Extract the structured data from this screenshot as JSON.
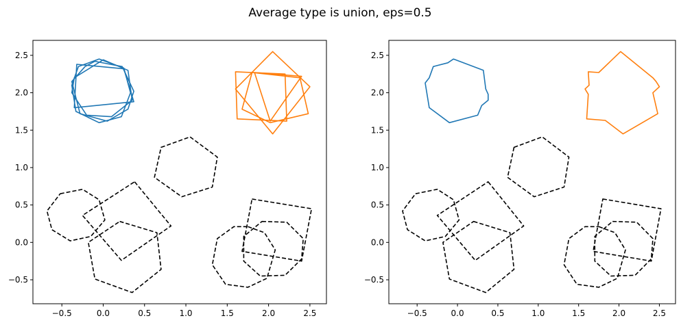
{
  "figure": {
    "title": "Average type is union, eps=0.5"
  },
  "chart_data": [
    {
      "type": "line",
      "panel": "left",
      "xlim": [
        -0.85,
        2.7
      ],
      "ylim": [
        -0.82,
        2.7
      ],
      "xticks": [
        -0.5,
        0.0,
        0.5,
        1.0,
        1.5,
        2.0,
        2.5
      ],
      "yticks": [
        -0.5,
        0.0,
        0.5,
        1.0,
        1.5,
        2.0,
        2.5
      ],
      "xtick_labels": [
        "−0.5",
        "0.0",
        "0.5",
        "1.0",
        "1.5",
        "2.0",
        "2.5"
      ],
      "ytick_labels": [
        "−0.5",
        "0.0",
        "0.5",
        "1.0",
        "1.5",
        "2.0",
        "2.5"
      ],
      "grid": false,
      "series": [
        {
          "color": "#1f77b4",
          "style": "solid",
          "points": [
            [
              -0.05,
              2.45
            ],
            [
              0.25,
              2.33
            ],
            [
              0.33,
              2.0
            ],
            [
              0.22,
              1.68
            ],
            [
              -0.05,
              1.6
            ],
            [
              -0.33,
              1.75
            ],
            [
              -0.38,
              2.1
            ],
            [
              -0.3,
              2.35
            ]
          ]
        },
        {
          "color": "#1f77b4",
          "style": "solid",
          "points": [
            [
              -0.1,
              2.42
            ],
            [
              0.23,
              2.35
            ],
            [
              0.37,
              2.02
            ],
            [
              0.3,
              1.78
            ],
            [
              0.05,
              1.62
            ],
            [
              -0.28,
              1.72
            ],
            [
              -0.38,
              2.15
            ],
            [
              -0.22,
              2.35
            ]
          ]
        },
        {
          "color": "#1f77b4",
          "style": "solid",
          "points": [
            [
              0.0,
              2.44
            ],
            [
              0.3,
              2.3
            ],
            [
              0.35,
              1.9
            ],
            [
              0.1,
              1.68
            ],
            [
              -0.2,
              1.7
            ],
            [
              -0.38,
              2.0
            ],
            [
              -0.35,
              2.2
            ]
          ]
        },
        {
          "color": "#1f77b4",
          "style": "solid",
          "points": [
            [
              -0.32,
              2.38
            ],
            [
              0.25,
              2.32
            ],
            [
              0.37,
              1.88
            ],
            [
              -0.35,
              1.8
            ]
          ]
        },
        {
          "color": "#ff7f0e",
          "style": "solid",
          "points": [
            [
              1.6,
              2.28
            ],
            [
              2.2,
              2.25
            ],
            [
              2.22,
              1.62
            ],
            [
              1.62,
              1.65
            ]
          ]
        },
        {
          "color": "#ff7f0e",
          "style": "solid",
          "points": [
            [
              2.05,
              2.55
            ],
            [
              2.5,
              2.08
            ],
            [
              2.05,
              1.45
            ],
            [
              1.6,
              2.05
            ]
          ]
        },
        {
          "color": "#ff7f0e",
          "style": "solid",
          "points": [
            [
              1.8,
              2.27
            ],
            [
              2.38,
              2.2
            ],
            [
              2.48,
              1.72
            ],
            [
              2.02,
              1.6
            ],
            [
              1.68,
              1.78
            ]
          ]
        },
        {
          "color": "#ff7f0e",
          "style": "solid",
          "points": [
            [
              1.83,
              2.27
            ],
            [
              2.4,
              2.22
            ],
            [
              2.02,
              1.62
            ]
          ]
        },
        {
          "color": "#000000",
          "style": "dashed",
          "points": [
            [
              0.7,
              1.27
            ],
            [
              1.05,
              1.41
            ],
            [
              1.38,
              1.14
            ],
            [
              1.32,
              0.74
            ],
            [
              0.95,
              0.61
            ],
            [
              0.62,
              0.87
            ]
          ]
        },
        {
          "color": "#000000",
          "style": "dashed",
          "points": [
            [
              -0.52,
              0.65
            ],
            [
              -0.25,
              0.71
            ],
            [
              -0.05,
              0.57
            ],
            [
              0.02,
              0.3
            ],
            [
              -0.15,
              0.08
            ],
            [
              -0.4,
              0.02
            ],
            [
              -0.62,
              0.17
            ],
            [
              -0.68,
              0.42
            ]
          ]
        },
        {
          "color": "#000000",
          "style": "dashed",
          "points": [
            [
              0.38,
              0.81
            ],
            [
              0.82,
              0.22
            ],
            [
              0.22,
              -0.24
            ],
            [
              -0.25,
              0.36
            ]
          ]
        },
        {
          "color": "#000000",
          "style": "dashed",
          "points": [
            [
              0.2,
              0.28
            ],
            [
              0.65,
              0.13
            ],
            [
              0.7,
              -0.36
            ],
            [
              0.35,
              -0.67
            ],
            [
              -0.1,
              -0.49
            ],
            [
              -0.18,
              0.0
            ]
          ]
        },
        {
          "color": "#000000",
          "style": "dashed",
          "points": [
            [
              1.8,
              0.58
            ],
            [
              2.52,
              0.45
            ],
            [
              2.4,
              -0.25
            ],
            [
              1.68,
              -0.12
            ]
          ]
        },
        {
          "color": "#000000",
          "style": "dashed",
          "points": [
            [
              1.75,
              0.21
            ],
            [
              1.95,
              0.13
            ],
            [
              2.08,
              -0.1
            ],
            [
              1.98,
              -0.48
            ],
            [
              1.75,
              -0.6
            ],
            [
              1.48,
              -0.56
            ],
            [
              1.32,
              -0.3
            ],
            [
              1.38,
              0.05
            ],
            [
              1.58,
              0.21
            ]
          ]
        },
        {
          "color": "#000000",
          "style": "dashed",
          "points": [
            [
              1.92,
              0.28
            ],
            [
              2.22,
              0.27
            ],
            [
              2.42,
              0.05
            ],
            [
              2.4,
              -0.22
            ],
            [
              2.2,
              -0.44
            ],
            [
              1.9,
              -0.45
            ],
            [
              1.7,
              -0.25
            ],
            [
              1.7,
              0.08
            ]
          ]
        }
      ]
    },
    {
      "type": "line",
      "panel": "right",
      "xlim": [
        -0.85,
        2.7
      ],
      "ylim": [
        -0.82,
        2.7
      ],
      "xticks": [
        -0.5,
        0.0,
        0.5,
        1.0,
        1.5,
        2.0,
        2.5
      ],
      "yticks": [
        -0.5,
        0.0,
        0.5,
        1.0,
        1.5,
        2.0,
        2.5
      ],
      "xtick_labels": [
        "−0.5",
        "0.0",
        "0.5",
        "1.0",
        "1.5",
        "2.0",
        "2.5"
      ],
      "ytick_labels": [
        "−0.5",
        "0.0",
        "0.5",
        "1.0",
        "1.5",
        "2.0",
        "2.5"
      ],
      "grid": false,
      "series": [
        {
          "color": "#1f77b4",
          "style": "solid",
          "points": [
            [
              -0.05,
              2.45
            ],
            [
              0.32,
              2.3
            ],
            [
              0.35,
              2.05
            ],
            [
              0.38,
              1.98
            ],
            [
              0.38,
              1.9
            ],
            [
              0.3,
              1.83
            ],
            [
              0.25,
              1.7
            ],
            [
              -0.1,
              1.6
            ],
            [
              -0.35,
              1.8
            ],
            [
              -0.4,
              2.13
            ],
            [
              -0.35,
              2.2
            ],
            [
              -0.3,
              2.35
            ],
            [
              -0.12,
              2.4
            ]
          ]
        },
        {
          "color": "#ff7f0e",
          "style": "solid",
          "points": [
            [
              2.02,
              2.55
            ],
            [
              2.42,
              2.2
            ],
            [
              2.46,
              2.15
            ],
            [
              2.5,
              2.08
            ],
            [
              2.42,
              2.0
            ],
            [
              2.48,
              1.72
            ],
            [
              2.05,
              1.45
            ],
            [
              1.83,
              1.63
            ],
            [
              1.6,
              1.65
            ],
            [
              1.62,
              1.98
            ],
            [
              1.58,
              2.05
            ],
            [
              1.63,
              2.1
            ],
            [
              1.62,
              2.28
            ],
            [
              1.75,
              2.27
            ]
          ]
        },
        {
          "color": "#000000",
          "style": "dashed",
          "points": [
            [
              0.7,
              1.27
            ],
            [
              1.05,
              1.41
            ],
            [
              1.38,
              1.14
            ],
            [
              1.32,
              0.74
            ],
            [
              0.95,
              0.61
            ],
            [
              0.62,
              0.87
            ]
          ]
        },
        {
          "color": "#000000",
          "style": "dashed",
          "points": [
            [
              -0.52,
              0.65
            ],
            [
              -0.25,
              0.71
            ],
            [
              -0.05,
              0.57
            ],
            [
              0.02,
              0.3
            ],
            [
              -0.15,
              0.08
            ],
            [
              -0.4,
              0.02
            ],
            [
              -0.62,
              0.17
            ],
            [
              -0.68,
              0.42
            ]
          ]
        },
        {
          "color": "#000000",
          "style": "dashed",
          "points": [
            [
              0.38,
              0.81
            ],
            [
              0.82,
              0.22
            ],
            [
              0.22,
              -0.24
            ],
            [
              -0.25,
              0.36
            ]
          ]
        },
        {
          "color": "#000000",
          "style": "dashed",
          "points": [
            [
              0.2,
              0.28
            ],
            [
              0.65,
              0.13
            ],
            [
              0.7,
              -0.36
            ],
            [
              0.35,
              -0.67
            ],
            [
              -0.1,
              -0.49
            ],
            [
              -0.18,
              0.0
            ]
          ]
        },
        {
          "color": "#000000",
          "style": "dashed",
          "points": [
            [
              1.8,
              0.58
            ],
            [
              2.52,
              0.45
            ],
            [
              2.4,
              -0.25
            ],
            [
              1.68,
              -0.12
            ]
          ]
        },
        {
          "color": "#000000",
          "style": "dashed",
          "points": [
            [
              1.75,
              0.21
            ],
            [
              1.95,
              0.13
            ],
            [
              2.08,
              -0.1
            ],
            [
              1.98,
              -0.48
            ],
            [
              1.75,
              -0.6
            ],
            [
              1.48,
              -0.56
            ],
            [
              1.32,
              -0.3
            ],
            [
              1.38,
              0.05
            ],
            [
              1.58,
              0.21
            ]
          ]
        },
        {
          "color": "#000000",
          "style": "dashed",
          "points": [
            [
              1.92,
              0.28
            ],
            [
              2.22,
              0.27
            ],
            [
              2.42,
              0.05
            ],
            [
              2.4,
              -0.22
            ],
            [
              2.2,
              -0.44
            ],
            [
              1.9,
              -0.45
            ],
            [
              1.7,
              -0.25
            ],
            [
              1.7,
              0.08
            ]
          ]
        }
      ]
    }
  ]
}
